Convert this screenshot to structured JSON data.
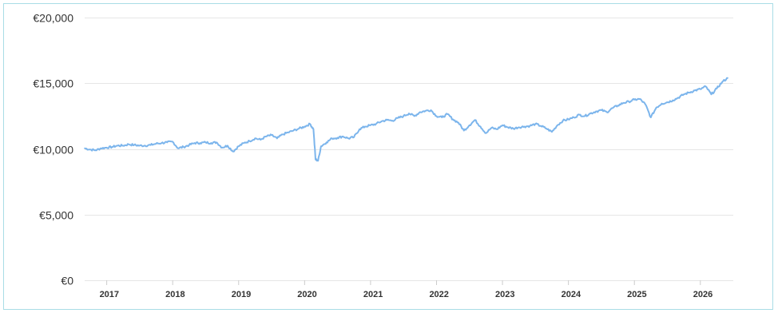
{
  "chart_data": {
    "type": "line",
    "title": "",
    "xlabel": "",
    "ylabel": "",
    "currency_symbol": "€",
    "ylim": [
      0,
      20000
    ],
    "xlim": [
      "2016-09",
      "2026-07"
    ],
    "y_ticks": [
      {
        "value": 0,
        "label": "€0"
      },
      {
        "value": 5000,
        "label": "€5,000"
      },
      {
        "value": 10000,
        "label": "€10,000"
      },
      {
        "value": 15000,
        "label": "€15,000"
      },
      {
        "value": 20000,
        "label": "€20,000"
      }
    ],
    "x_ticks": [
      "2017",
      "2018",
      "2019",
      "2020",
      "2021",
      "2022",
      "2023",
      "2024",
      "2025",
      "2026"
    ],
    "grid": true,
    "legend": "none",
    "line_color": "#7cb5ec",
    "series": [
      {
        "points": [
          [
            "2016-09",
            10050
          ],
          [
            "2016-10",
            9950
          ],
          [
            "2016-11",
            9900
          ],
          [
            "2016-12",
            10050
          ],
          [
            "2017-01",
            10100
          ],
          [
            "2017-02",
            10150
          ],
          [
            "2017-03",
            10250
          ],
          [
            "2017-04",
            10250
          ],
          [
            "2017-05",
            10350
          ],
          [
            "2017-06",
            10300
          ],
          [
            "2017-07",
            10250
          ],
          [
            "2017-08",
            10250
          ],
          [
            "2017-09",
            10300
          ],
          [
            "2017-10",
            10400
          ],
          [
            "2017-11",
            10450
          ],
          [
            "2017-12",
            10500
          ],
          [
            "2018-01",
            10550
          ],
          [
            "2018-02",
            10050
          ],
          [
            "2018-03",
            10150
          ],
          [
            "2018-04",
            10300
          ],
          [
            "2018-05",
            10450
          ],
          [
            "2018-06",
            10450
          ],
          [
            "2018-07",
            10500
          ],
          [
            "2018-08",
            10450
          ],
          [
            "2018-09",
            10500
          ],
          [
            "2018-10",
            10100
          ],
          [
            "2018-11",
            10250
          ],
          [
            "2018-12",
            9800
          ],
          [
            "2019-01",
            10200
          ],
          [
            "2019-02",
            10450
          ],
          [
            "2019-03",
            10600
          ],
          [
            "2019-04",
            10800
          ],
          [
            "2019-05",
            10700
          ],
          [
            "2019-06",
            10950
          ],
          [
            "2019-07",
            11050
          ],
          [
            "2019-08",
            10800
          ],
          [
            "2019-09",
            11100
          ],
          [
            "2019-10",
            11250
          ],
          [
            "2019-11",
            11400
          ],
          [
            "2019-12",
            11550
          ],
          [
            "2020-01",
            11700
          ],
          [
            "2020-02",
            11900
          ],
          [
            "2020-02-20",
            11500
          ],
          [
            "2020-03",
            9200
          ],
          [
            "2020-03-15",
            9100
          ],
          [
            "2020-04",
            10200
          ],
          [
            "2020-05",
            10500
          ],
          [
            "2020-06",
            10800
          ],
          [
            "2020-07",
            10850
          ],
          [
            "2020-08",
            10950
          ],
          [
            "2020-09",
            10800
          ],
          [
            "2020-10",
            10900
          ],
          [
            "2020-11",
            11500
          ],
          [
            "2020-12",
            11700
          ],
          [
            "2021-01",
            11800
          ],
          [
            "2021-02",
            11900
          ],
          [
            "2021-03",
            12100
          ],
          [
            "2021-04",
            12200
          ],
          [
            "2021-05",
            12150
          ],
          [
            "2021-06",
            12350
          ],
          [
            "2021-07",
            12500
          ],
          [
            "2021-08",
            12700
          ],
          [
            "2021-09",
            12500
          ],
          [
            "2021-10",
            12800
          ],
          [
            "2021-11",
            12900
          ],
          [
            "2021-12",
            12950
          ],
          [
            "2022-01",
            12500
          ],
          [
            "2022-02",
            12400
          ],
          [
            "2022-03",
            12650
          ],
          [
            "2022-04",
            12250
          ],
          [
            "2022-05",
            12000
          ],
          [
            "2022-06",
            11400
          ],
          [
            "2022-07",
            11800
          ],
          [
            "2022-08",
            12200
          ],
          [
            "2022-09",
            11700
          ],
          [
            "2022-10",
            11200
          ],
          [
            "2022-11",
            11600
          ],
          [
            "2022-12",
            11500
          ],
          [
            "2023-01",
            11800
          ],
          [
            "2023-02",
            11650
          ],
          [
            "2023-03",
            11550
          ],
          [
            "2023-04",
            11650
          ],
          [
            "2023-05",
            11700
          ],
          [
            "2023-06",
            11750
          ],
          [
            "2023-07",
            11900
          ],
          [
            "2023-08",
            11750
          ],
          [
            "2023-09",
            11550
          ],
          [
            "2023-10",
            11300
          ],
          [
            "2023-11",
            11800
          ],
          [
            "2023-12",
            12150
          ],
          [
            "2024-01",
            12250
          ],
          [
            "2024-02",
            12400
          ],
          [
            "2024-03",
            12600
          ],
          [
            "2024-04",
            12500
          ],
          [
            "2024-05",
            12700
          ],
          [
            "2024-06",
            12850
          ],
          [
            "2024-07",
            12950
          ],
          [
            "2024-08",
            12800
          ],
          [
            "2024-09",
            13100
          ],
          [
            "2024-10",
            13300
          ],
          [
            "2024-11",
            13500
          ],
          [
            "2024-12",
            13600
          ],
          [
            "2025-01",
            13750
          ],
          [
            "2025-02",
            13800
          ],
          [
            "2025-03",
            13400
          ],
          [
            "2025-04",
            12400
          ],
          [
            "2025-05",
            13150
          ],
          [
            "2025-06",
            13450
          ],
          [
            "2025-07",
            13550
          ],
          [
            "2025-08",
            13700
          ],
          [
            "2025-09",
            13900
          ],
          [
            "2025-10",
            14150
          ],
          [
            "2025-11",
            14300
          ],
          [
            "2025-12",
            14450
          ],
          [
            "2026-01",
            14550
          ],
          [
            "2026-02",
            14750
          ],
          [
            "2026-03",
            14150
          ],
          [
            "2026-04",
            14600
          ],
          [
            "2026-05",
            15100
          ],
          [
            "2026-06",
            15400
          ]
        ]
      }
    ]
  }
}
